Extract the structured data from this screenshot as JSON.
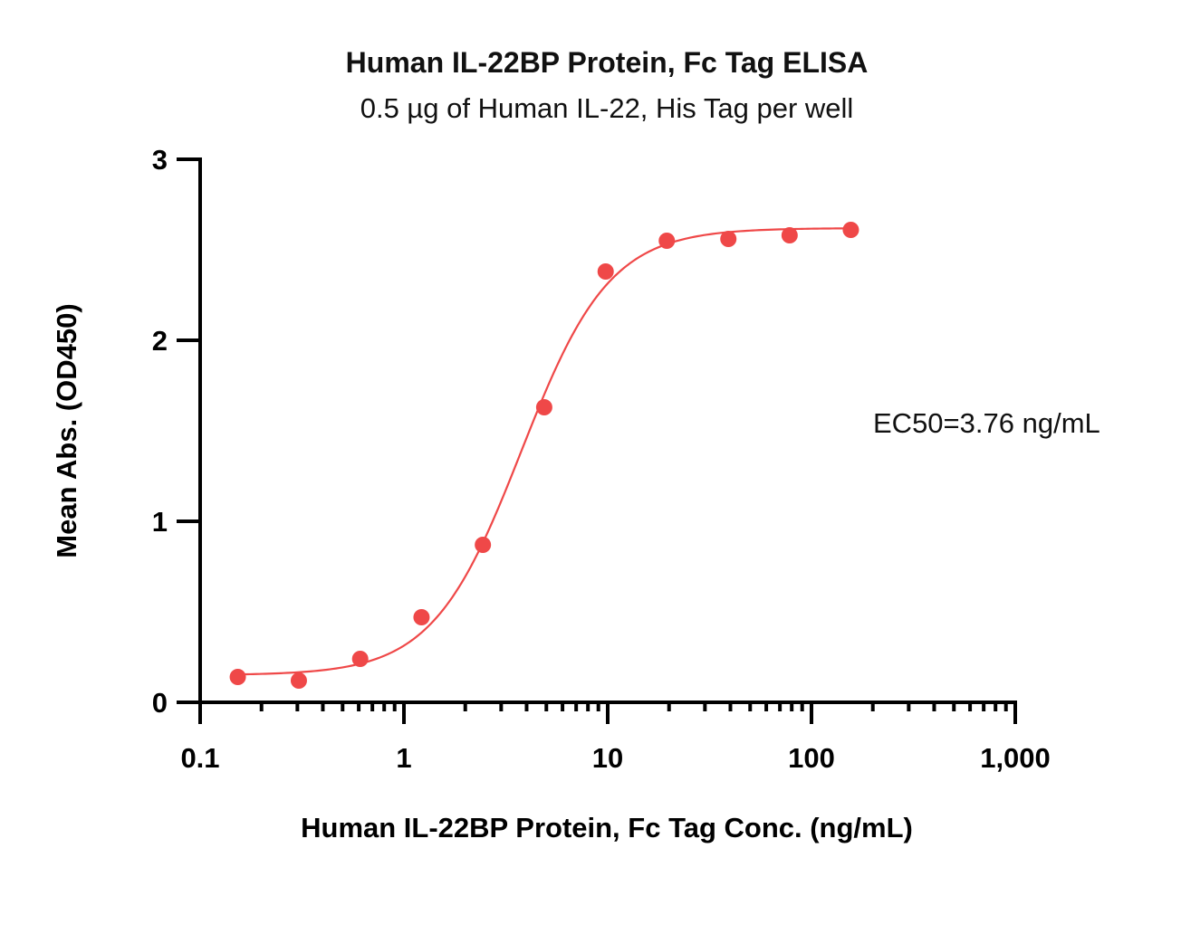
{
  "chart_data": {
    "type": "scatter",
    "title": "Human IL-22BP Protein, Fc Tag ELISA",
    "subtitle": "0.5 µg of Human IL-22, His Tag per well",
    "xlabel": "Human IL-22BP Protein, Fc Tag Conc. (ng/mL)",
    "ylabel": "Mean Abs. (OD450)",
    "xscale": "log",
    "xlim": [
      0.1,
      1000
    ],
    "ylim": [
      0,
      3
    ],
    "x_ticks": [
      0.1,
      1,
      10,
      100,
      1000
    ],
    "x_tick_labels": [
      "0.1",
      "1",
      "10",
      "100",
      "1,000"
    ],
    "y_ticks": [
      0,
      1,
      2,
      3
    ],
    "y_tick_labels": [
      "0",
      "1",
      "2",
      "3"
    ],
    "grid": false,
    "annotation": "EC50=3.76 ng/mL",
    "colors": {
      "series": "#ef4848",
      "axis": "#000000"
    },
    "series": [
      {
        "x": [
          0.153,
          0.305,
          0.61,
          1.22,
          2.44,
          4.88,
          9.77,
          19.5,
          39.1,
          78.1,
          156
        ],
        "y": [
          0.14,
          0.12,
          0.24,
          0.47,
          0.87,
          1.63,
          2.38,
          2.55,
          2.56,
          2.58,
          2.61
        ]
      }
    ],
    "fit": {
      "model": "4PL",
      "bottom": 0.15,
      "top": 2.62,
      "ec50": 3.76,
      "hill": 2.0
    }
  }
}
